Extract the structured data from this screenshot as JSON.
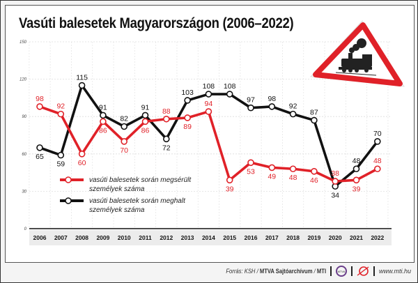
{
  "chart_data": {
    "type": "line",
    "title": "Vasúti balesetek Magyarországon (2006–2022)",
    "xlabel": "",
    "ylabel": "",
    "ylim": [
      0,
      150
    ],
    "yticks": [
      "0",
      "30",
      "60",
      "90",
      "120",
      "150"
    ],
    "grid": true,
    "categories": [
      "2006",
      "2007",
      "2008",
      "2009",
      "2010",
      "2011",
      "2012",
      "2013",
      "2014",
      "2015",
      "2016",
      "2017",
      "2018",
      "2019",
      "2020",
      "2021",
      "2022"
    ],
    "series": [
      {
        "name": "vasúti balesetek során megsérült személyek száma",
        "legend_lines": [
          "vasúti balesetek során megsérült",
          "személyek száma"
        ],
        "color": "#e02128",
        "values": [
          98,
          92,
          60,
          86,
          70,
          86,
          88,
          89,
          94,
          39,
          53,
          49,
          48,
          46,
          38,
          39,
          48
        ]
      },
      {
        "name": "vasúti balesetek során meghalt személyek száma",
        "legend_lines": [
          "vasúti balesetek során meghalt",
          "személyek száma"
        ],
        "color": "#111111",
        "values": [
          65,
          59,
          115,
          91,
          82,
          91,
          72,
          103,
          108,
          108,
          97,
          98,
          92,
          87,
          34,
          48,
          70
        ]
      }
    ],
    "legend_placement": "center-left"
  },
  "footer": {
    "source_prefix": "Forrás: KSH /",
    "source_bold": "MTVA Sajtóarchívum",
    "source_sep": "/",
    "source_mti": "MTI",
    "logo1_text": "MTVA",
    "url": "www.mti.hu"
  },
  "icons": {
    "sign": "railway-crossing-warning-sign-icon"
  }
}
